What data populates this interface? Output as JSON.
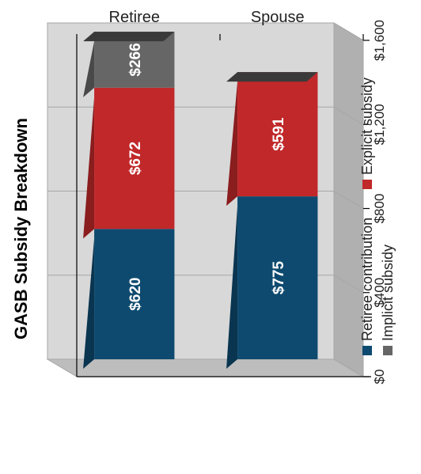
{
  "chart_data": {
    "type": "bar",
    "orientation": "stacked-3d-rotated",
    "title": "GASB Subsidy Breakdown",
    "categories": [
      "Retiree",
      "Spouse"
    ],
    "series": [
      {
        "name": "Retiree contribution",
        "color": "#0e4a6f",
        "values": [
          620,
          775
        ],
        "labels": [
          "$620",
          "$775"
        ]
      },
      {
        "name": "Explicit subsidy",
        "color": "#c0282a",
        "values": [
          672,
          591
        ],
        "labels": [
          "$672",
          "$591"
        ]
      },
      {
        "name": "Implicit subsidy",
        "color": "#666666",
        "values": [
          266,
          0
        ],
        "labels": [
          "$266",
          ""
        ]
      }
    ],
    "ylim": [
      0,
      1600
    ],
    "ticks": [
      {
        "value": 0,
        "label": "$0"
      },
      {
        "value": 400,
        "label": "$400"
      },
      {
        "value": 800,
        "label": "$800"
      },
      {
        "value": 1200,
        "label": "$1,200"
      },
      {
        "value": 1600,
        "label": "$1,600"
      }
    ],
    "grid": true,
    "legend_position": "bottom"
  }
}
